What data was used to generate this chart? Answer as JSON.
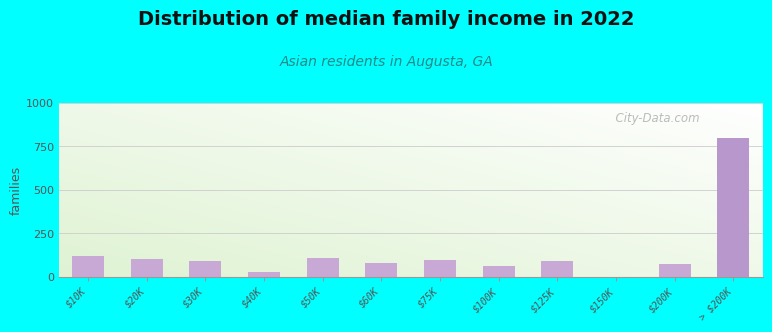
{
  "title": "Distribution of median family income in 2022",
  "subtitle": "Asian residents in Augusta, GA",
  "categories": [
    "$10K",
    "$20K",
    "$30K",
    "$40K",
    "$50K",
    "$60K",
    "$75K",
    "$100K",
    "$125K",
    "$150K",
    "$200K",
    "> $200K"
  ],
  "values": [
    120,
    100,
    90,
    30,
    110,
    80,
    95,
    65,
    90,
    0,
    75,
    800
  ],
  "bar_color": "#c8a8d4",
  "last_bar_color": "#b898cc",
  "bg_color_topleft": "#d8edcc",
  "bg_color_topright": "#ffffff",
  "bg_color_bottomleft": "#c8e8b8",
  "bg_color_bottomright": "#e8f5e0",
  "figure_bg": "#00ffff",
  "ylabel": "families",
  "ylim": [
    0,
    1000
  ],
  "yticks": [
    0,
    250,
    500,
    750,
    1000
  ],
  "title_fontsize": 14,
  "subtitle_fontsize": 10,
  "watermark": "  City-Data.com"
}
